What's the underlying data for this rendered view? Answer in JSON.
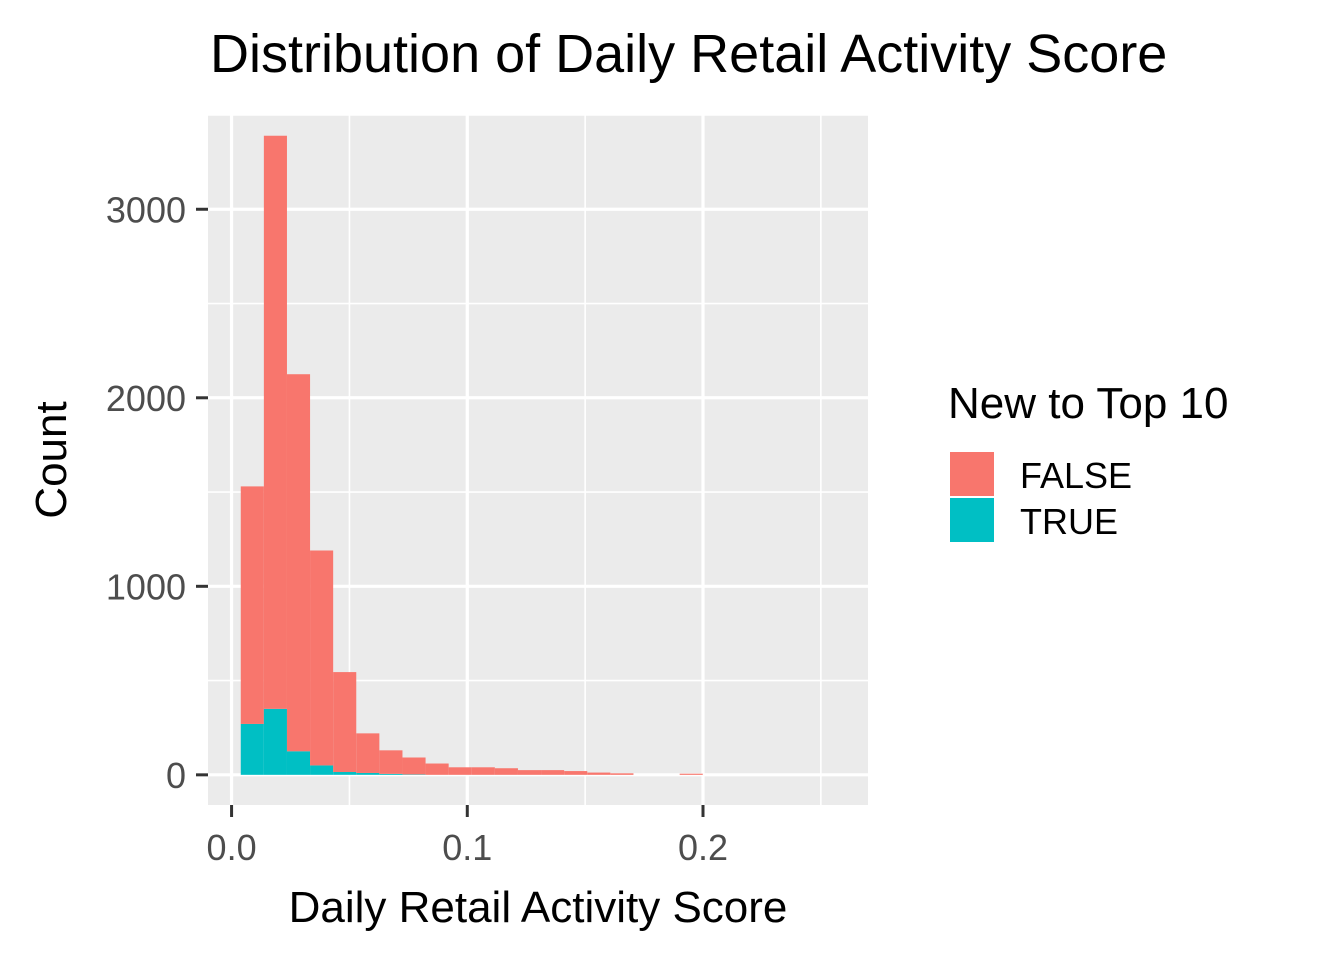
{
  "chart_data": {
    "type": "bar",
    "subtype": "stacked-histogram",
    "title": "Distribution of Daily Retail Activity Score",
    "xlabel": "Daily Retail Activity Score",
    "ylabel": "Count",
    "xlim": [
      -0.01,
      0.27
    ],
    "ylim": [
      -160,
      3500
    ],
    "x_ticks": [
      0.0,
      0.1,
      0.2
    ],
    "x_tick_labels": [
      "0.0",
      "0.1",
      "0.2"
    ],
    "y_ticks": [
      0,
      1000,
      2000,
      3000
    ],
    "y_tick_labels": [
      "0",
      "1000",
      "2000",
      "3000"
    ],
    "bin_width": 0.0098,
    "bin_start": 0.0039,
    "grid": true,
    "legend": {
      "title": "New to Top 10",
      "position": "right"
    },
    "series": [
      {
        "name": "FALSE",
        "color": "#F8766D",
        "values": [
          1260,
          3040,
          2000,
          1140,
          530,
          210,
          125,
          90,
          60,
          40,
          40,
          35,
          25,
          25,
          20,
          12,
          8,
          0,
          0,
          6,
          0,
          0,
          0,
          0,
          0,
          0
        ]
      },
      {
        "name": "TRUE",
        "color": "#00BFC4",
        "values": [
          270,
          350,
          125,
          50,
          15,
          10,
          5,
          2,
          0,
          0,
          0,
          0,
          0,
          0,
          0,
          0,
          0,
          0,
          0,
          0,
          0,
          0,
          0,
          0,
          0,
          0
        ]
      }
    ]
  },
  "colors": {
    "panel_background": "#EBEBEB",
    "grid_major": "#FFFFFF",
    "axis_text": "#4D4D4D",
    "title_text": "#000000"
  }
}
